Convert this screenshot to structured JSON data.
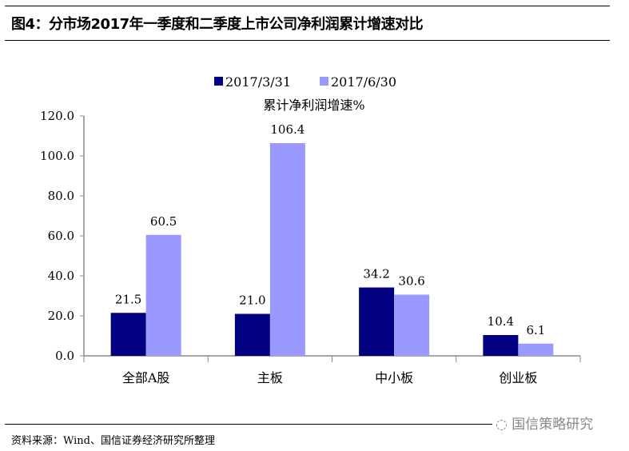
{
  "title": "图4：分市场2017年一季度和二季度上市公司净利润累计增速对比",
  "source": "资料来源：Wind、国信证券经济研究所整理",
  "watermark": "国信策略研究",
  "chart_data": {
    "type": "bar",
    "title": "累计净利润增速%",
    "categories": [
      "全部A股",
      "主板",
      "中小板",
      "创业板"
    ],
    "series": [
      {
        "name": "2017/3/31",
        "color": "#000080",
        "values": [
          21.5,
          21.0,
          34.2,
          10.4
        ]
      },
      {
        "name": "2017/6/30",
        "color": "#9999FF",
        "values": [
          60.5,
          106.4,
          30.6,
          6.1
        ]
      }
    ],
    "yticks": [
      "0.0",
      "20.0",
      "40.0",
      "60.0",
      "80.0",
      "100.0",
      "120.0"
    ],
    "ylim": [
      0,
      120
    ],
    "legend": "top-center",
    "grid": false
  }
}
